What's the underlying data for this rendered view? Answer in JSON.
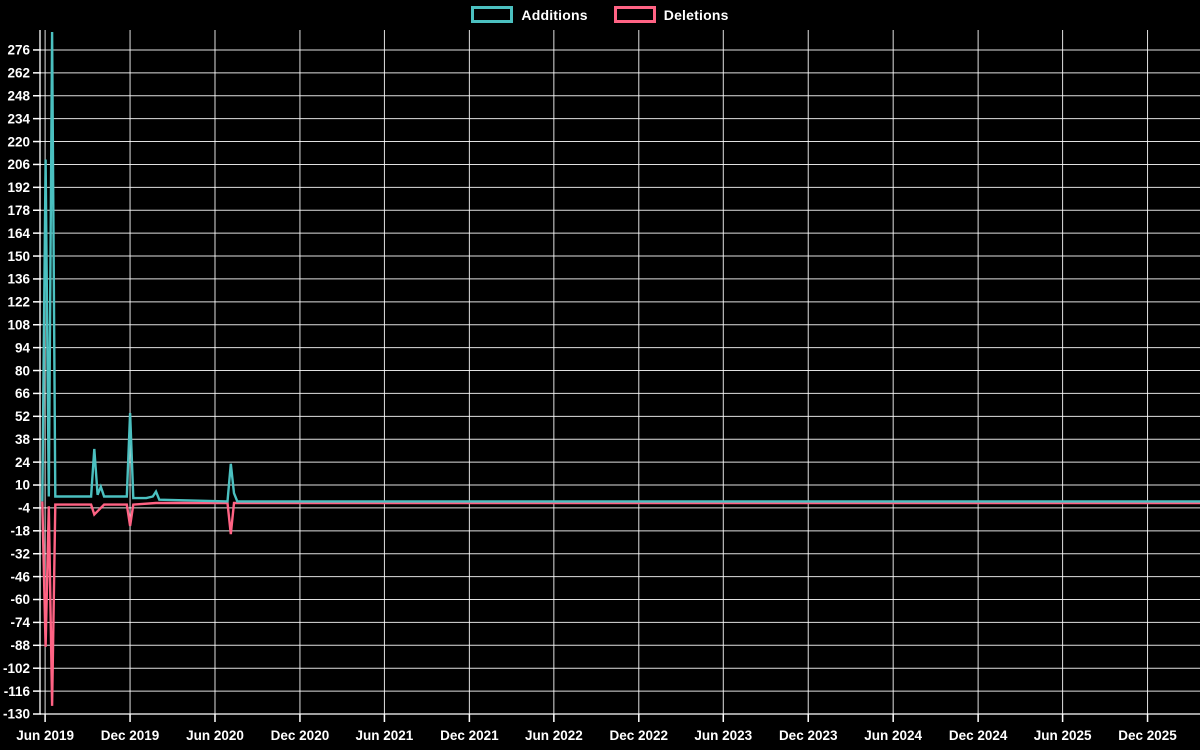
{
  "page": {
    "background": "#000000",
    "text_color": "#ffffff",
    "grid_color": "#ffffff"
  },
  "legend": {
    "position": "top-center",
    "items": [
      {
        "id": "additions",
        "label": "Additions",
        "color": "#4bc0c0"
      },
      {
        "id": "deletions",
        "label": "Deletions",
        "color": "#ff6384"
      }
    ]
  },
  "chart_data": {
    "type": "line",
    "title": "",
    "xlabel": "",
    "ylabel": "",
    "grid": true,
    "legend_position": "top-center",
    "x_axis": {
      "type": "date",
      "domain": [
        "2019-05-21",
        "2026-03-24"
      ],
      "ticks": [
        {
          "date": "2019-06-01",
          "label": "Jun 2019"
        },
        {
          "date": "2019-12-01",
          "label": "Dec 2019"
        },
        {
          "date": "2020-06-01",
          "label": "Jun 2020"
        },
        {
          "date": "2020-12-01",
          "label": "Dec 2020"
        },
        {
          "date": "2021-06-01",
          "label": "Jun 2021"
        },
        {
          "date": "2021-12-01",
          "label": "Dec 2021"
        },
        {
          "date": "2022-06-01",
          "label": "Jun 2022"
        },
        {
          "date": "2022-12-01",
          "label": "Dec 2022"
        },
        {
          "date": "2023-06-01",
          "label": "Jun 2023"
        },
        {
          "date": "2023-12-01",
          "label": "Dec 2023"
        },
        {
          "date": "2024-06-01",
          "label": "Jun 2024"
        },
        {
          "date": "2024-12-01",
          "label": "Dec 2024"
        },
        {
          "date": "2025-06-01",
          "label": "Jun 2025"
        },
        {
          "date": "2025-12-01",
          "label": "Dec 2025"
        }
      ]
    },
    "y_axis": {
      "domain": [
        -130,
        288.2
      ],
      "tick_values": [
        276,
        262,
        248,
        234,
        220,
        206,
        192,
        178,
        164,
        150,
        136,
        122,
        108,
        94,
        80,
        66,
        52,
        38,
        24,
        10,
        -4,
        -18,
        -32,
        -46,
        -60,
        -74,
        -88,
        -102,
        -116,
        -130
      ]
    },
    "series": [
      {
        "name": "Additions",
        "color": "#4bc0c0",
        "points": [
          [
            "2019-05-26",
            0
          ],
          [
            "2019-06-02",
            209
          ],
          [
            "2019-06-09",
            3
          ],
          [
            "2019-06-16",
            287
          ],
          [
            "2019-06-23",
            3
          ],
          [
            "2019-09-08",
            3
          ],
          [
            "2019-09-15",
            32
          ],
          [
            "2019-09-22",
            4
          ],
          [
            "2019-09-29",
            9
          ],
          [
            "2019-10-06",
            3
          ],
          [
            "2019-11-24",
            3
          ],
          [
            "2019-12-01",
            54
          ],
          [
            "2019-12-08",
            2
          ],
          [
            "2020-01-05",
            2
          ],
          [
            "2020-01-19",
            3
          ],
          [
            "2020-01-26",
            6
          ],
          [
            "2020-02-02",
            1
          ],
          [
            "2020-06-28",
            0
          ],
          [
            "2020-07-05",
            23
          ],
          [
            "2020-07-12",
            5
          ],
          [
            "2020-07-19",
            0
          ],
          [
            "2026-03-24",
            0
          ]
        ]
      },
      {
        "name": "Deletions",
        "color": "#ff6384",
        "points": [
          [
            "2019-05-26",
            0
          ],
          [
            "2019-06-02",
            -89
          ],
          [
            "2019-06-09",
            -3
          ],
          [
            "2019-06-16",
            -125
          ],
          [
            "2019-06-23",
            -2
          ],
          [
            "2019-09-08",
            -2
          ],
          [
            "2019-09-15",
            -8
          ],
          [
            "2019-09-22",
            -6
          ],
          [
            "2019-09-29",
            -4
          ],
          [
            "2019-10-06",
            -2
          ],
          [
            "2019-11-24",
            -2
          ],
          [
            "2019-12-01",
            -15
          ],
          [
            "2019-12-08",
            -2
          ],
          [
            "2020-01-26",
            -1
          ],
          [
            "2020-06-28",
            -1
          ],
          [
            "2020-07-05",
            -20
          ],
          [
            "2020-07-12",
            -1
          ],
          [
            "2026-03-24",
            -1
          ]
        ]
      }
    ]
  }
}
